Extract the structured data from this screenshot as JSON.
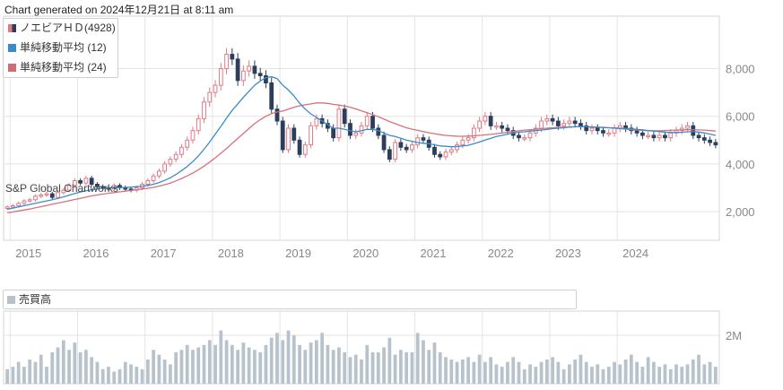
{
  "header": {
    "generated": "Chart generated on 2024年12月21日 at 8:11 am"
  },
  "watermark": "S&P Global Chartworks",
  "legend": [
    {
      "label": "ノエビアＨＤ(4928)",
      "color": "#d06a75",
      "icon": "candlestick-icon"
    },
    {
      "label": "単純移動平均 (12)",
      "color": "#3a8cc8",
      "icon": "blue-square-icon"
    },
    {
      "label": "単純移動平均 (24)",
      "color": "#d06a75",
      "icon": "pink-square-icon"
    }
  ],
  "volume_legend": {
    "label": "売買高"
  },
  "colors": {
    "up": "#e07a85",
    "down": "#2c3e5c",
    "ma12": "#3a8cc8",
    "ma24": "#d7707c",
    "volume": "#b7c3cc",
    "grid": "#e3e3e3"
  },
  "chart_data": [
    {
      "type": "candlestick",
      "title": "ノエビアＨＤ(4928)",
      "x_axis": {
        "labels": [
          "2015",
          "2016",
          "2017",
          "2018",
          "2019",
          "2020",
          "2021",
          "2022",
          "2023",
          "2024"
        ]
      },
      "y_axis": {
        "ticks": [
          "2,000",
          "4,000",
          "6,000",
          "8,000"
        ],
        "range": [
          800,
          10200
        ],
        "position": "right"
      },
      "grid": true,
      "legend_position": "top-left",
      "period": "monthly",
      "start": "2014-12",
      "close": [
        2200,
        2250,
        2350,
        2450,
        2500,
        2650,
        2700,
        2750,
        2600,
        2800,
        2900,
        3100,
        3300,
        3200,
        3400,
        3150,
        3050,
        3000,
        2950,
        3100,
        3000,
        2950,
        2900,
        3000,
        3150,
        3300,
        3500,
        3700,
        4000,
        4200,
        4400,
        4700,
        5000,
        5400,
        5900,
        6600,
        7000,
        7300,
        8000,
        8600,
        8400,
        7500,
        7900,
        8100,
        7800,
        7700,
        7400,
        6300,
        5800,
        4600,
        5500,
        5000,
        4400,
        4800,
        5600,
        5900,
        5700,
        5500,
        5100,
        6300,
        5700,
        5200,
        5300,
        5600,
        6000,
        5500,
        5200,
        4600,
        4200,
        4900,
        4700,
        4600,
        4800,
        5100,
        5000,
        4700,
        4400,
        4300,
        4500,
        4600,
        4800,
        5000,
        5100,
        5500,
        5800,
        6000,
        5600,
        5600,
        5500,
        5400,
        5200,
        5100,
        5100,
        5300,
        5500,
        5800,
        5900,
        5800,
        5600,
        5700,
        5800,
        5700,
        5600,
        5400,
        5500,
        5400,
        5300,
        5300,
        5500,
        5600,
        5500,
        5400,
        5300,
        5200,
        5200,
        5100,
        5200,
        5100,
        5300,
        5400,
        5500,
        5600,
        5200,
        5100,
        5000,
        4900,
        4800
      ],
      "ma12": [
        2100,
        2150,
        2200,
        2250,
        2300,
        2350,
        2400,
        2450,
        2500,
        2560,
        2620,
        2690,
        2760,
        2820,
        2880,
        2920,
        2960,
        2980,
        2990,
        3000,
        3010,
        3020,
        3030,
        3050,
        3070,
        3100,
        3150,
        3220,
        3310,
        3420,
        3560,
        3720,
        3900,
        4100,
        4340,
        4620,
        4920,
        5250,
        5580,
        5920,
        6250,
        6520,
        6800,
        7050,
        7300,
        7480,
        7620,
        7660,
        7580,
        7300,
        7100,
        6850,
        6550,
        6300,
        6100,
        5950,
        5800,
        5650,
        5500,
        5500,
        5450,
        5400,
        5350,
        5400,
        5450,
        5450,
        5400,
        5300,
        5200,
        5150,
        5080,
        5000,
        4950,
        4900,
        4870,
        4850,
        4800,
        4760,
        4740,
        4720,
        4730,
        4760,
        4780,
        4850,
        4920,
        5000,
        5080,
        5150,
        5200,
        5250,
        5300,
        5330,
        5350,
        5380,
        5400,
        5420,
        5450,
        5480,
        5500,
        5520,
        5550,
        5560,
        5570,
        5560,
        5550,
        5540,
        5530,
        5520,
        5510,
        5500,
        5490,
        5470,
        5450,
        5430,
        5400,
        5380,
        5360,
        5330,
        5320,
        5320,
        5330,
        5350,
        5360,
        5340,
        5300,
        5250,
        5200
      ],
      "ma24": [
        1950,
        1990,
        2030,
        2070,
        2110,
        2160,
        2210,
        2260,
        2310,
        2360,
        2410,
        2460,
        2510,
        2560,
        2610,
        2660,
        2700,
        2740,
        2770,
        2800,
        2830,
        2860,
        2890,
        2920,
        2950,
        2980,
        3020,
        3070,
        3130,
        3200,
        3290,
        3390,
        3500,
        3620,
        3760,
        3910,
        4080,
        4260,
        4450,
        4650,
        4860,
        5070,
        5280,
        5490,
        5690,
        5860,
        6000,
        6110,
        6180,
        6220,
        6300,
        6380,
        6440,
        6480,
        6520,
        6560,
        6560,
        6540,
        6500,
        6470,
        6430,
        6380,
        6310,
        6230,
        6150,
        6070,
        5980,
        5880,
        5780,
        5690,
        5600,
        5520,
        5460,
        5410,
        5360,
        5310,
        5270,
        5230,
        5200,
        5180,
        5160,
        5160,
        5170,
        5180,
        5200,
        5220,
        5240,
        5270,
        5300,
        5330,
        5360,
        5390,
        5420,
        5440,
        5460,
        5480,
        5500,
        5520,
        5530,
        5540,
        5550,
        5560,
        5570,
        5560,
        5550,
        5540,
        5530,
        5520,
        5500,
        5480,
        5460,
        5440,
        5420,
        5410,
        5400,
        5390,
        5390,
        5400,
        5410,
        5420,
        5430,
        5440,
        5440,
        5430,
        5420,
        5400,
        5380
      ]
    },
    {
      "type": "bar",
      "title": "売買高",
      "y_axis": {
        "ticks": [
          "2M"
        ],
        "range": [
          0,
          3000000
        ],
        "position": "right"
      },
      "grid": true,
      "values": [
        600000,
        700000,
        900000,
        700000,
        1000000,
        900000,
        1200000,
        700000,
        1300000,
        1500000,
        1800000,
        1400000,
        1700000,
        1300000,
        1400000,
        1100000,
        900000,
        600000,
        700000,
        500000,
        600000,
        900000,
        800000,
        700000,
        600000,
        1000000,
        1400000,
        1200000,
        1000000,
        800000,
        1300000,
        1400000,
        1600000,
        1400000,
        1500000,
        1600000,
        1800000,
        1600000,
        2200000,
        1800000,
        1600000,
        1400000,
        1700000,
        1500000,
        1400000,
        1300000,
        1600000,
        1900000,
        2100000,
        1800000,
        2200000,
        2000000,
        1600000,
        1400000,
        1700000,
        1800000,
        2100000,
        1600000,
        1400000,
        1500000,
        1300000,
        1100000,
        1200000,
        1000000,
        1600000,
        1300000,
        1300000,
        1500000,
        1900000,
        1200000,
        1400000,
        1300000,
        1300000,
        2100000,
        1800000,
        1400000,
        1700000,
        1300000,
        1100000,
        1000000,
        900000,
        1000000,
        1100000,
        900000,
        1200000,
        900000,
        1100000,
        800000,
        700000,
        900000,
        1100000,
        900000,
        600000,
        800000,
        700000,
        900000,
        1000000,
        1100000,
        900000,
        600000,
        800000,
        1000000,
        1200000,
        900000,
        700000,
        800000,
        600000,
        700000,
        900000,
        800000,
        1000000,
        1200000,
        900000,
        700000,
        1100000,
        900000,
        700000,
        800000,
        600000,
        800000,
        700000,
        800000,
        1000000,
        1200000,
        800000,
        900000,
        700000
      ]
    }
  ]
}
